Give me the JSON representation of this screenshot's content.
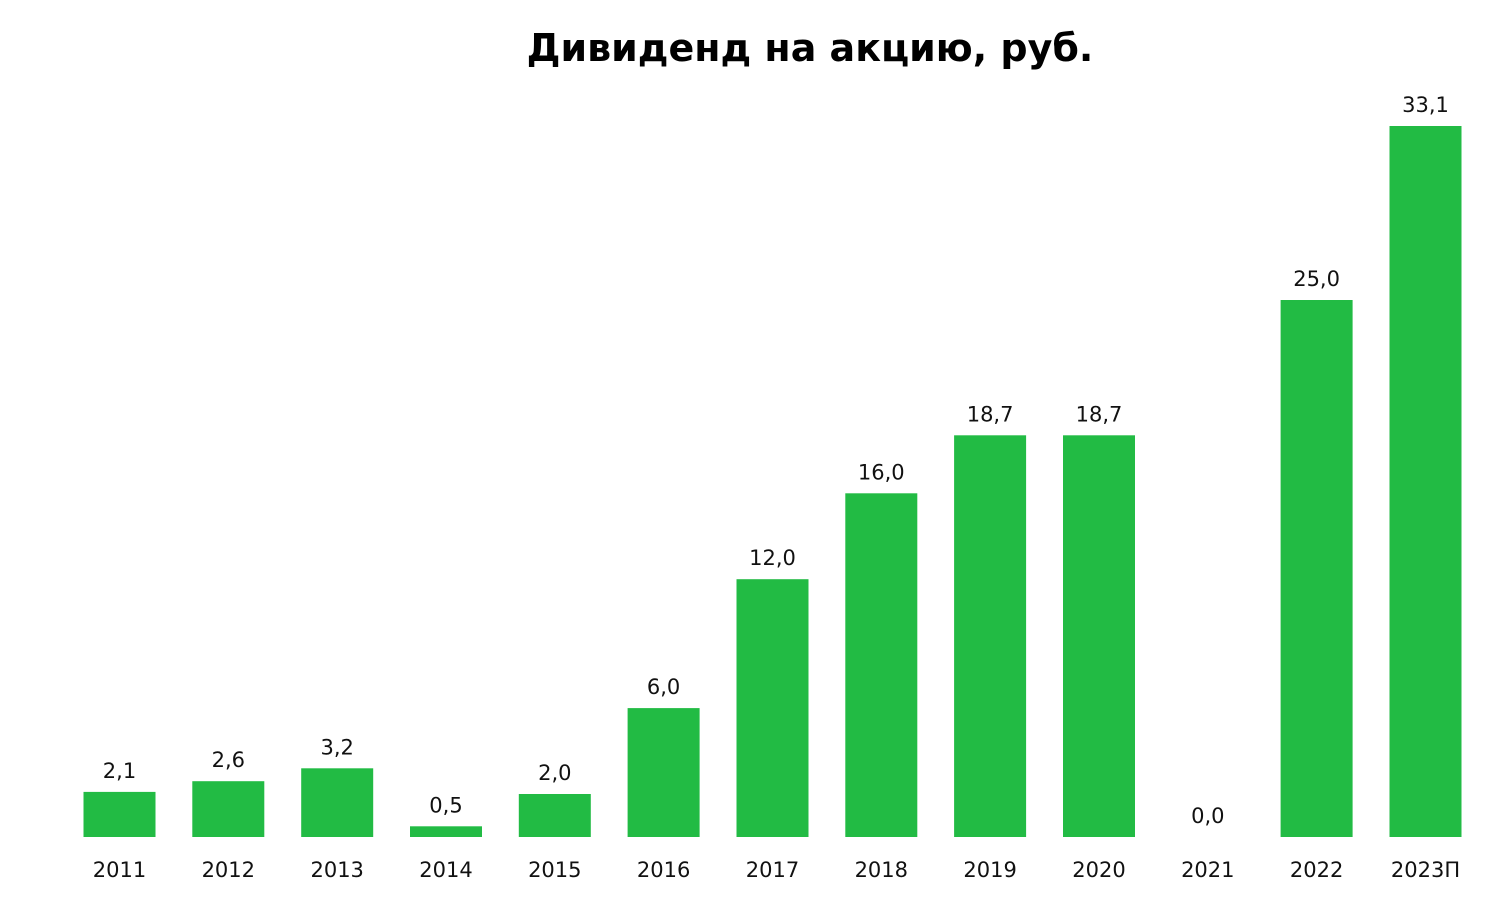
{
  "chart_data": {
    "type": "bar",
    "title": "Дивиденд на акцию, руб.",
    "xlabel": "",
    "ylabel": "",
    "grid": false,
    "legend": "none",
    "categories": [
      "2011",
      "2012",
      "2013",
      "2014",
      "2015",
      "2016",
      "2017",
      "2018",
      "2019",
      "2020",
      "2021",
      "2022",
      "2023П"
    ],
    "values": [
      2.1,
      2.6,
      3.2,
      0.5,
      2.0,
      6.0,
      12.0,
      16.0,
      18.7,
      18.7,
      0.0,
      25.0,
      33.1
    ],
    "value_labels": [
      "2,1",
      "2,6",
      "3,2",
      "0,5",
      "2,0",
      "6,0",
      "12,0",
      "16,0",
      "18,7",
      "18,7",
      "0,0",
      "25,0",
      "33,1"
    ],
    "ylim": [
      0,
      33.1
    ],
    "bar_color": "#22BB44"
  }
}
